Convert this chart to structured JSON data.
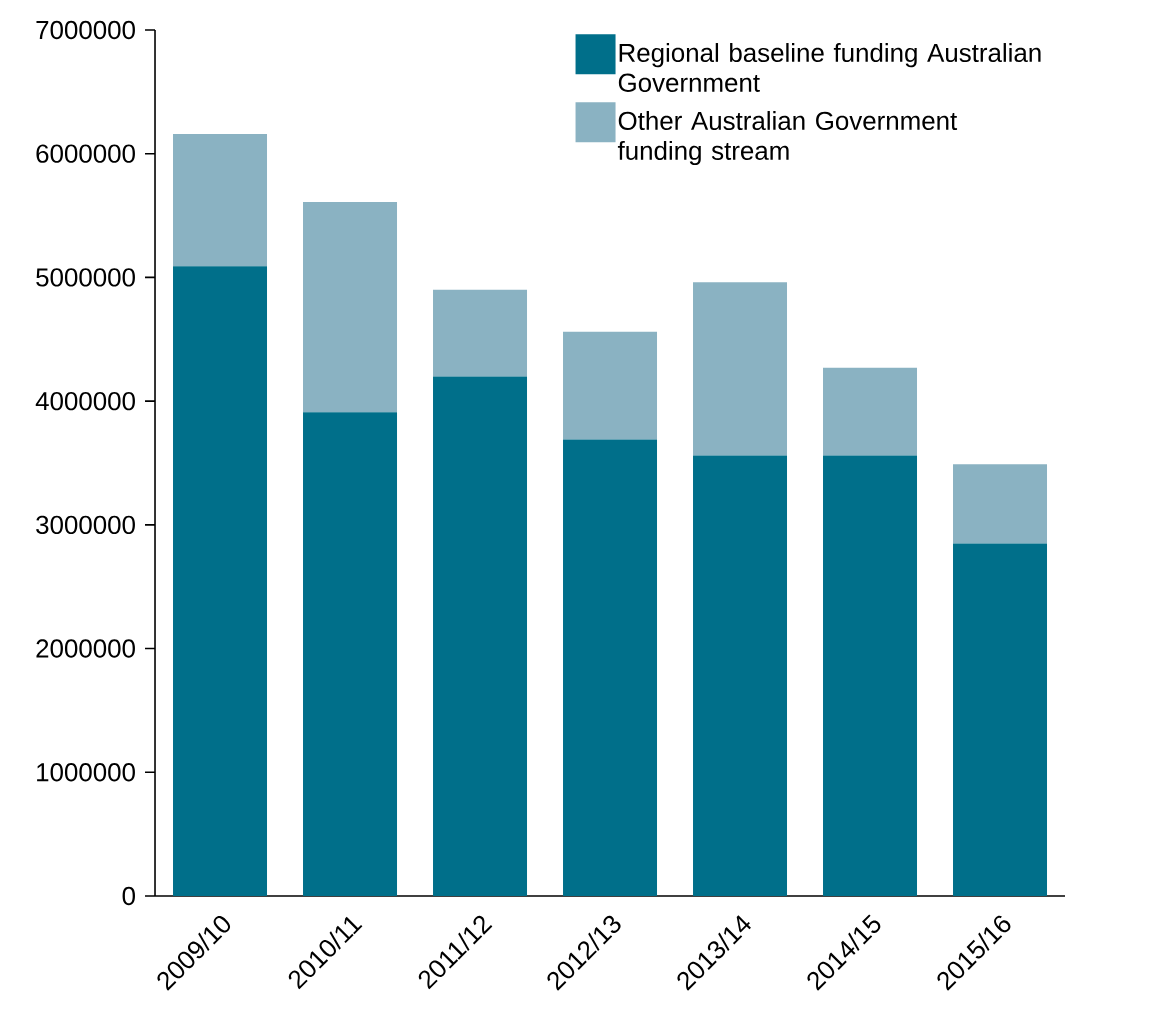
{
  "chart_data": {
    "type": "bar",
    "stacked": true,
    "categories": [
      "2009/10",
      "2010/11",
      "2011/12",
      "2012/13",
      "2013/14",
      "2014/15",
      "2015/16"
    ],
    "series": [
      {
        "name": "Regional baseline funding Australian Government",
        "color": "#006f8a",
        "values": [
          5090000,
          3910000,
          4200000,
          3690000,
          3560000,
          3560000,
          2850000
        ]
      },
      {
        "name": "Other Australian Government funding stream",
        "color": "#8ab2c2",
        "values": [
          1070000,
          1700000,
          700000,
          870000,
          1400000,
          710000,
          640000
        ]
      }
    ],
    "ylim": [
      0,
      7000000
    ],
    "yticks": [
      0,
      1000000,
      2000000,
      3000000,
      4000000,
      5000000,
      6000000,
      7000000
    ],
    "legend": "top right"
  }
}
